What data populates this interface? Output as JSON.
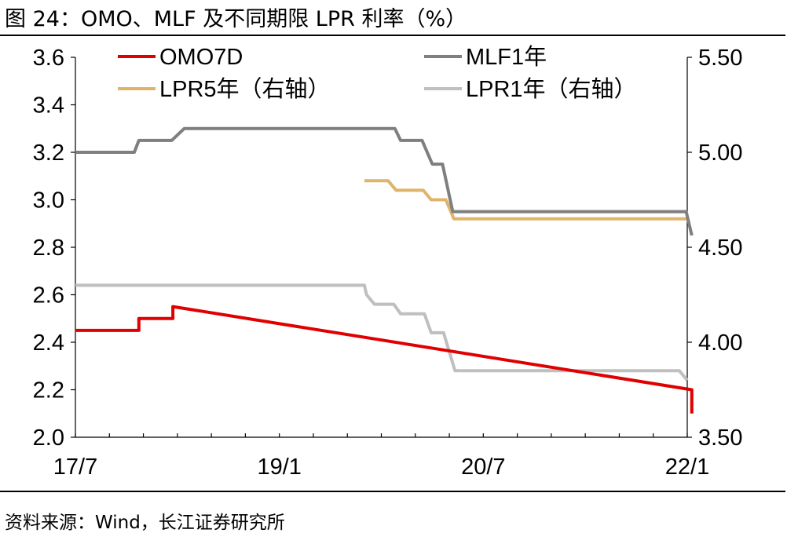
{
  "title": "图  24：OMO、MLF 及不同期限 LPR 利率（%）",
  "source": "资料来源：Wind，长江证券研究所",
  "chart_data": {
    "type": "line",
    "x_axis": {
      "start": "2017-07",
      "end": "2022-01",
      "ticks": [
        "17/7",
        "19/1",
        "20/7",
        "22/1"
      ],
      "tick_months": [
        0,
        18,
        36,
        54
      ]
    },
    "y_left": {
      "min": 2.0,
      "max": 3.6,
      "ticks": [
        "2.0",
        "2.2",
        "2.4",
        "2.6",
        "2.8",
        "3.0",
        "3.2",
        "3.4",
        "3.6"
      ]
    },
    "y_right": {
      "min": 3.5,
      "max": 5.5,
      "ticks": [
        "3.50",
        "4.00",
        "4.50",
        "5.00",
        "5.50"
      ]
    },
    "legend": [
      {
        "name": "OMO7D",
        "color": "#e00000"
      },
      {
        "name": "MLF1年",
        "color": "#7f7f7f"
      },
      {
        "name": "LPR5年（右轴）",
        "color": "#dfb46a"
      },
      {
        "name": "LPR1年（右轴）",
        "color": "#bfbfbf"
      }
    ],
    "series": [
      {
        "name": "OMO7D",
        "axis": "left",
        "color": "#e00000",
        "months": [
          0,
          5.6,
          5.6,
          8.6,
          8.6,
          54.4,
          54.4
        ],
        "values": [
          2.45,
          2.45,
          2.5,
          2.5,
          2.55,
          2.2,
          2.1
        ]
      },
      {
        "name": "MLF1年",
        "axis": "left",
        "color": "#7f7f7f",
        "months": [
          0,
          5.2,
          5.6,
          8.5,
          9.6,
          28.2,
          28.7,
          30.6,
          31.5,
          32.4,
          33.3,
          34.1,
          53.9,
          54.4
        ],
        "values": [
          3.2,
          3.2,
          3.25,
          3.25,
          3.3,
          3.3,
          3.25,
          3.25,
          3.15,
          3.15,
          2.95,
          2.95,
          2.95,
          2.85
        ]
      },
      {
        "name": "LPR5年（右轴）",
        "axis": "right",
        "color": "#dfb46a",
        "months": [
          25.5,
          27.6,
          28.3,
          30.7,
          31.4,
          32.7,
          33.4,
          54.0
        ],
        "values": [
          4.85,
          4.85,
          4.8,
          4.8,
          4.75,
          4.75,
          4.65,
          4.65
        ]
      },
      {
        "name": "LPR1年（右轴）",
        "axis": "right",
        "color": "#bfbfbf",
        "months": [
          0,
          25.5,
          25.7,
          26.4,
          28.1,
          28.7,
          30.8,
          31.4,
          32.5,
          33.5,
          53.3,
          54.0
        ],
        "values": [
          4.3,
          4.3,
          4.25,
          4.2,
          4.2,
          4.15,
          4.15,
          4.05,
          4.05,
          3.85,
          3.85,
          3.8
        ]
      }
    ]
  }
}
